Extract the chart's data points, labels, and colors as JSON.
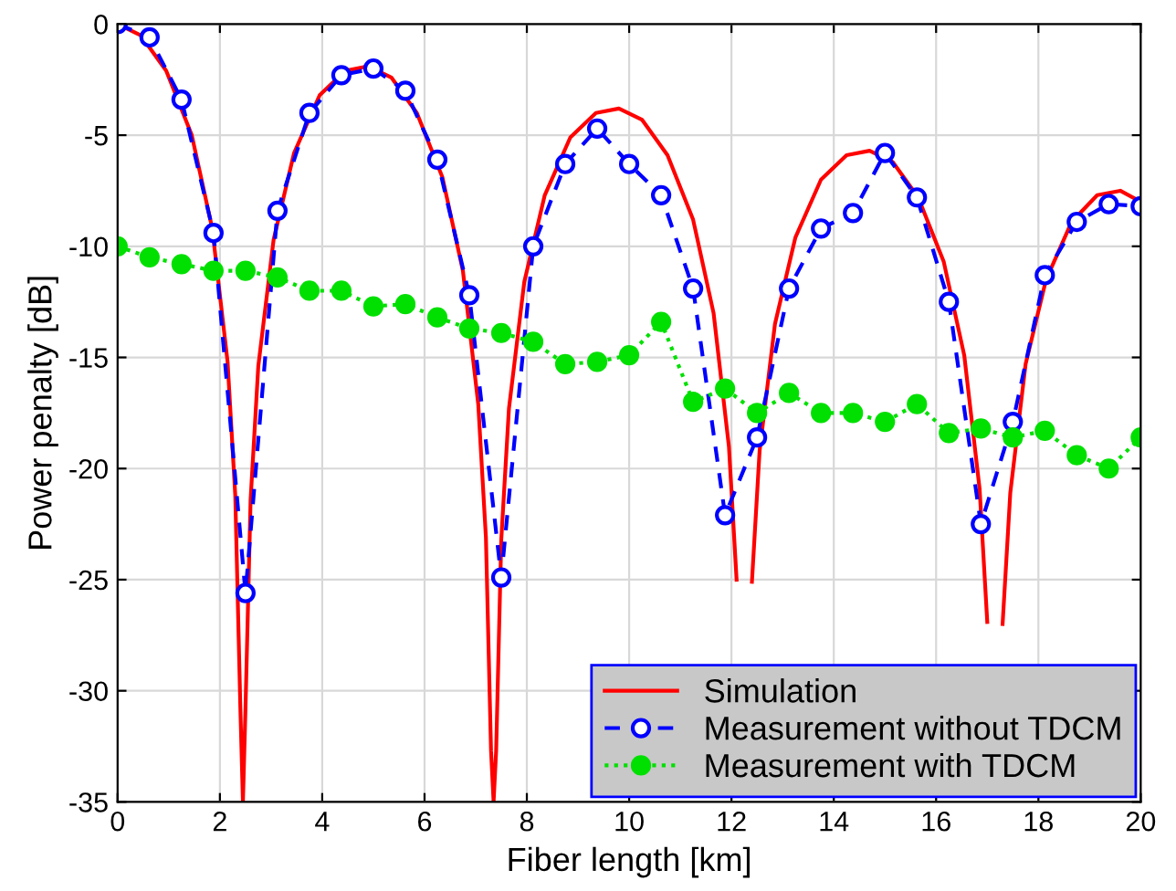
{
  "chart_data": {
    "type": "line",
    "xlabel": "Fiber length [km]",
    "ylabel": "Power penalty [dB]",
    "xlim": [
      0,
      20
    ],
    "ylim": [
      -35,
      0
    ],
    "xticks": [
      0,
      2,
      4,
      6,
      8,
      10,
      12,
      14,
      16,
      18,
      20
    ],
    "yticks": [
      -35,
      -30,
      -25,
      -20,
      -15,
      -10,
      -5,
      0
    ],
    "grid": true,
    "legend": "bottom right",
    "series": [
      {
        "name": "Simulation",
        "color": "#ff0000",
        "marker": "none",
        "line_style": "solid",
        "x": [
          0,
          0.45,
          0.95,
          1.45,
          1.85,
          2.15,
          2.3,
          2.4,
          2.45,
          2.5,
          2.6,
          2.75,
          3.05,
          3.45,
          3.95,
          4.45,
          4.9,
          5.35,
          5.85,
          6.35,
          6.75,
          7.05,
          7.2,
          7.3,
          7.35,
          7.4,
          7.5,
          7.65,
          7.95,
          8.35,
          8.85,
          9.35,
          9.8,
          10.25,
          10.75,
          11.25,
          11.65,
          11.95,
          12.1,
          12.2,
          12.25,
          12.3,
          12.4,
          12.55,
          12.85,
          13.25,
          13.75,
          14.25,
          14.7,
          15.15,
          15.65,
          16.15,
          16.55,
          16.85,
          17.0,
          17.15,
          17.3,
          17.45,
          17.75,
          18.15,
          18.65,
          19.15,
          19.6,
          20
        ],
        "values": [
          0,
          -0.5,
          -2.1,
          -5.0,
          -9.2,
          -15.2,
          -21.2,
          -30.8,
          -35,
          -30.8,
          -21.4,
          -15.4,
          -9.7,
          -5.8,
          -3.2,
          -2.1,
          -1.9,
          -2.4,
          -4.0,
          -6.9,
          -11.1,
          -17.1,
          -23.1,
          -32.7,
          -35,
          -32.7,
          -23.2,
          -17.3,
          -11.6,
          -7.7,
          -5.1,
          -4.0,
          -3.8,
          -4.3,
          -5.9,
          -8.8,
          -13.0,
          -19.0,
          -25.0,
          null,
          null,
          null,
          -25.1,
          -19.2,
          -13.5,
          -9.6,
          -7.0,
          -5.9,
          -5.7,
          -6.2,
          -7.8,
          -10.7,
          -14.9,
          -20.9,
          -26.9,
          null,
          -27.0,
          -21.1,
          -15.3,
          -11.5,
          -8.9,
          -7.7,
          -7.5,
          -8.0
        ]
      },
      {
        "name": "Measurement without TDCM",
        "color": "#0000ff",
        "marker": "circle",
        "line_style": "dashed",
        "x": [
          0,
          0.625,
          1.25,
          1.875,
          2.5,
          3.125,
          3.75,
          4.375,
          5.0,
          5.625,
          6.25,
          6.875,
          7.5,
          8.125,
          8.75,
          9.375,
          10.0,
          10.625,
          11.25,
          11.875,
          12.5,
          13.125,
          13.75,
          14.375,
          15.0,
          15.625,
          16.25,
          16.875,
          17.5,
          18.125,
          18.75,
          19.375,
          20.0
        ],
        "values": [
          0,
          -0.6,
          -3.4,
          -9.4,
          -25.6,
          -8.4,
          -4.0,
          -2.3,
          -2.0,
          -3.0,
          -6.1,
          -12.2,
          -24.9,
          -10.0,
          -6.3,
          -4.7,
          -6.3,
          -7.7,
          -11.9,
          -22.1,
          -18.6,
          -11.9,
          -9.2,
          -8.5,
          -5.8,
          -7.8,
          -12.5,
          -22.5,
          -17.9,
          -11.3,
          -8.9,
          -8.1,
          -8.2
        ]
      },
      {
        "name": "Measurement with TDCM",
        "color": "#00e000",
        "marker": "circle",
        "line_style": "dotted",
        "x": [
          0,
          0.625,
          1.25,
          1.875,
          2.5,
          3.125,
          3.75,
          4.375,
          5.0,
          5.625,
          6.25,
          6.875,
          7.5,
          8.125,
          8.75,
          9.375,
          10.0,
          10.625,
          11.25,
          11.875,
          12.5,
          13.125,
          13.75,
          14.375,
          15.0,
          15.625,
          16.25,
          16.875,
          17.5,
          18.125,
          18.75,
          19.375,
          20.0
        ],
        "values": [
          -10.0,
          -10.5,
          -10.8,
          -11.1,
          -11.1,
          -11.4,
          -12.0,
          -12.0,
          -12.7,
          -12.6,
          -13.2,
          -13.7,
          -13.9,
          -14.3,
          -15.3,
          -15.2,
          -14.9,
          -13.4,
          -17.0,
          -16.4,
          -17.5,
          -16.6,
          -17.5,
          -17.5,
          -17.9,
          -17.1,
          -18.4,
          -18.2,
          -18.6,
          -18.3,
          -19.4,
          -20.0,
          -18.6
        ]
      }
    ]
  }
}
